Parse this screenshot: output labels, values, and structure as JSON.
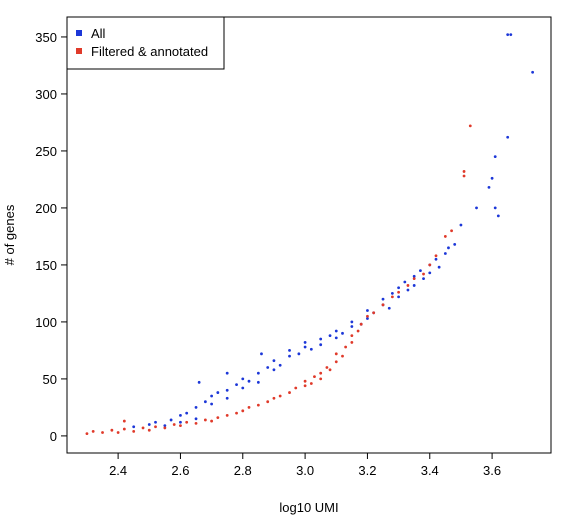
{
  "chart_data": {
    "type": "scatter",
    "x_label": "log10 UMI",
    "y_label": "# of genes",
    "legend": "top-left",
    "xlim": [
      2.236,
      3.789
    ],
    "ylim": [
      -15,
      367.5
    ],
    "xticks": [
      2.4,
      2.6,
      2.8,
      {
        "value": 3,
        "label": "3.0"
      },
      3.2,
      3.4,
      3.6
    ],
    "yticks": [
      0,
      50,
      100,
      150,
      200,
      250,
      300,
      350
    ],
    "series": [
      {
        "name": "All",
        "color": "#1c37d8",
        "x": [
          2.45,
          2.5,
          2.52,
          2.55,
          2.57,
          2.6,
          2.6,
          2.62,
          2.65,
          2.65,
          2.68,
          2.7,
          2.7,
          2.72,
          2.75,
          2.75,
          2.78,
          2.8,
          2.8,
          2.82,
          2.85,
          2.85,
          2.88,
          2.9,
          2.9,
          2.92,
          2.95,
          2.95,
          2.98,
          3.0,
          3.0,
          3.02,
          3.05,
          3.05,
          3.08,
          3.1,
          3.1,
          3.12,
          3.15,
          3.15,
          3.18,
          3.2,
          3.2,
          3.22,
          3.25,
          3.25,
          3.27,
          3.28,
          3.3,
          3.3,
          3.32,
          3.33,
          3.35,
          3.35,
          3.37,
          3.38,
          3.4,
          3.4,
          3.42,
          3.43,
          3.45,
          3.46,
          3.48,
          3.5,
          3.55,
          3.59,
          3.6,
          3.61,
          3.61,
          3.62,
          3.65,
          3.65,
          3.66,
          3.73,
          2.66,
          2.75,
          2.86
        ],
        "values": [
          8,
          10,
          12,
          9,
          14,
          12,
          18,
          20,
          25,
          15,
          30,
          28,
          35,
          38,
          40,
          33,
          45,
          42,
          50,
          48,
          55,
          47,
          60,
          58,
          66,
          62,
          70,
          75,
          72,
          78,
          82,
          76,
          85,
          80,
          88,
          86,
          92,
          90,
          96,
          100,
          98,
          103,
          110,
          108,
          115,
          120,
          112,
          125,
          130,
          122,
          135,
          128,
          140,
          132,
          145,
          138,
          150,
          143,
          155,
          148,
          160,
          165,
          168,
          185,
          200,
          218,
          226,
          245,
          200,
          193,
          262,
          352,
          352,
          319,
          47,
          55,
          72
        ]
      },
      {
        "name": "Filtered & annotated",
        "color": "#e03a2a",
        "x": [
          2.3,
          2.32,
          2.35,
          2.38,
          2.4,
          2.42,
          2.45,
          2.48,
          2.5,
          2.52,
          2.55,
          2.58,
          2.6,
          2.62,
          2.65,
          2.68,
          2.7,
          2.72,
          2.75,
          2.78,
          2.8,
          2.82,
          2.85,
          2.88,
          2.9,
          2.92,
          2.95,
          2.97,
          3.0,
          3.0,
          3.02,
          3.03,
          3.05,
          3.05,
          3.07,
          3.08,
          3.1,
          3.1,
          3.12,
          3.13,
          3.15,
          3.15,
          3.17,
          3.18,
          3.2,
          3.22,
          3.25,
          3.28,
          3.3,
          3.33,
          3.35,
          3.38,
          3.4,
          3.42,
          3.45,
          3.47,
          3.51,
          3.51,
          3.53,
          2.42
        ],
        "values": [
          2,
          4,
          3,
          5,
          3,
          6,
          4,
          7,
          5,
          8,
          7,
          10,
          9,
          12,
          11,
          14,
          13,
          16,
          18,
          20,
          22,
          25,
          27,
          30,
          33,
          35,
          38,
          42,
          44,
          48,
          46,
          52,
          55,
          50,
          60,
          58,
          65,
          72,
          70,
          78,
          82,
          88,
          92,
          98,
          105,
          108,
          115,
          122,
          126,
          132,
          138,
          142,
          150,
          158,
          175,
          180,
          232,
          228,
          272,
          13
        ]
      }
    ]
  }
}
